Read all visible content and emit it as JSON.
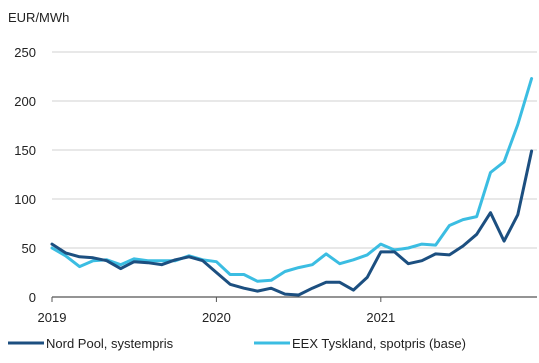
{
  "chart_data": {
    "type": "line",
    "title": "",
    "unit_label": "EUR/MWh",
    "xlabel": "",
    "ylabel": "",
    "ylim": [
      0,
      250
    ],
    "yticks": [
      0,
      50,
      100,
      150,
      200,
      250
    ],
    "xlim": [
      2019.0,
      2021.95
    ],
    "xticks": [
      {
        "value": 2019,
        "label": "2019"
      },
      {
        "value": 2020,
        "label": "2020"
      },
      {
        "value": 2021,
        "label": "2021"
      }
    ],
    "grid": "horizontal",
    "legend": "bottom",
    "x": [
      2019.0,
      2019.083,
      2019.167,
      2019.25,
      2019.333,
      2019.417,
      2019.5,
      2019.583,
      2019.667,
      2019.75,
      2019.833,
      2019.917,
      2020.0,
      2020.083,
      2020.167,
      2020.25,
      2020.333,
      2020.417,
      2020.5,
      2020.583,
      2020.667,
      2020.75,
      2020.833,
      2020.917,
      2021.0,
      2021.083,
      2021.167,
      2021.25,
      2021.333,
      2021.417,
      2021.5,
      2021.583,
      2021.667,
      2021.75,
      2021.833,
      2021.917
    ],
    "series": [
      {
        "name": "Nord Pool, systempris",
        "color": "#1c4f80",
        "values": [
          54,
          45,
          41,
          40,
          37,
          29,
          36,
          35,
          33,
          38,
          41,
          37,
          25,
          13,
          9,
          6,
          9,
          3,
          2,
          9,
          15,
          15,
          7,
          20,
          46,
          46,
          34,
          37,
          44,
          43,
          52,
          64,
          86,
          57,
          84,
          149
        ]
      },
      {
        "name": "EEX Tyskland, spotpris (base)",
        "color": "#3bbde2",
        "values": [
          50,
          42,
          31,
          37,
          38,
          33,
          39,
          37,
          37,
          37,
          42,
          38,
          36,
          23,
          23,
          16,
          17,
          26,
          30,
          33,
          44,
          34,
          38,
          43,
          54,
          48,
          50,
          54,
          53,
          73,
          79,
          82,
          127,
          138,
          176,
          223
        ]
      }
    ]
  }
}
